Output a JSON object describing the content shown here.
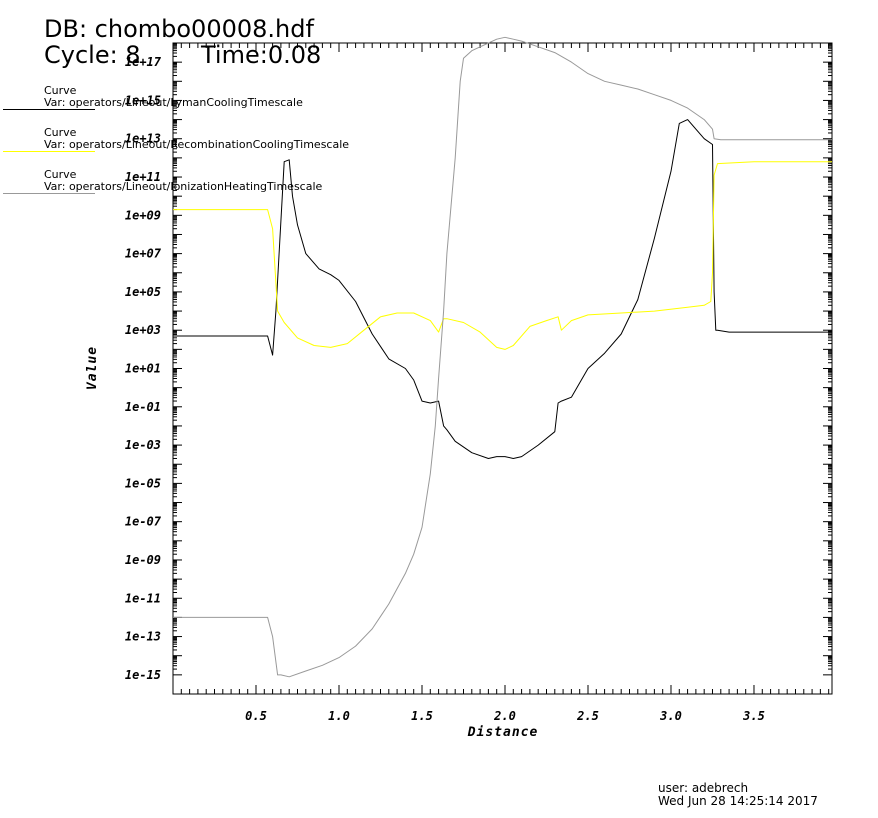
{
  "header": {
    "db": "DB: chombo00008.hdf",
    "cycle": "Cycle: 8",
    "time": "Time:0.08"
  },
  "legend": [
    {
      "title": "Curve",
      "var": "Var: operators/Lineout/LymanCoolingTimescale",
      "color": "#000000"
    },
    {
      "title": "Curve",
      "var": "Var: operators/Lineout/RecombinationCoolingTimescale",
      "color": "#ffff00"
    },
    {
      "title": "Curve",
      "var": "Var: operators/Lineout/IonizationHeatingTimescale",
      "color": "#999999"
    }
  ],
  "footer": {
    "user": "user: adebrech",
    "date": "Wed Jun 28 14:25:14 2017"
  },
  "chart_data": {
    "type": "line",
    "title": "",
    "xlabel": "Distance",
    "ylabel": "Value",
    "yscale": "log",
    "xlim": [
      0,
      3.97
    ],
    "ylim_log10": [
      -16,
      18
    ],
    "x_ticks": [
      0.5,
      1.0,
      1.5,
      2.0,
      2.5,
      3.0,
      3.5
    ],
    "x_tick_labels": [
      "0.5",
      "1.0",
      "1.5",
      "2.0",
      "2.5",
      "3.0",
      "3.5"
    ],
    "y_ticks_log10": [
      -15,
      -13,
      -11,
      -9,
      -7,
      -5,
      -3,
      -1,
      1,
      3,
      5,
      7,
      9,
      11,
      13,
      15,
      17
    ],
    "y_tick_labels": [
      "1e-15",
      "1e-13",
      "1e-11",
      "1e-09",
      "1e-07",
      "1e-05",
      "1e-03",
      "1e-01",
      "1e+01",
      "1e+03",
      "1e+05",
      "1e+07",
      "1e+09",
      "1e+11",
      "1e+13",
      "1e+15",
      "1e+17"
    ],
    "series_note": "y values given as log10(Value)",
    "series": [
      {
        "name": "Var: operators/Lineout/LymanCoolingTimescale",
        "color": "#000000",
        "x": [
          0,
          0.57,
          0.6,
          0.62,
          0.67,
          0.7,
          0.72,
          0.75,
          0.8,
          0.88,
          0.95,
          1.0,
          1.1,
          1.2,
          1.3,
          1.4,
          1.45,
          1.5,
          1.55,
          1.6,
          1.63,
          1.65,
          1.7,
          1.8,
          1.9,
          1.95,
          2.0,
          2.05,
          2.1,
          2.2,
          2.3,
          2.32,
          2.34,
          2.4,
          2.5,
          2.6,
          2.7,
          2.8,
          2.9,
          3.0,
          3.05,
          3.1,
          3.2,
          3.25,
          3.26,
          3.27,
          3.28,
          3.35,
          3.5,
          3.7,
          3.97
        ],
        "y": [
          2.7,
          2.7,
          1.7,
          4.0,
          11.8,
          11.9,
          10.0,
          8.5,
          7.0,
          6.2,
          5.9,
          5.6,
          4.5,
          2.8,
          1.5,
          1.0,
          0.4,
          -0.7,
          -0.8,
          -0.7,
          -2.0,
          -2.2,
          -2.8,
          -3.4,
          -3.7,
          -3.6,
          -3.6,
          -3.7,
          -3.6,
          -3.0,
          -2.3,
          -0.8,
          -0.7,
          -0.5,
          1.0,
          1.8,
          2.8,
          4.6,
          7.8,
          11.3,
          13.8,
          14.0,
          13.0,
          12.7,
          5.0,
          3.0,
          3.0,
          2.9,
          2.9,
          2.9,
          2.9
        ]
      },
      {
        "name": "Var: operators/Lineout/RecombinationCoolingTimescale",
        "color": "#ffff00",
        "x": [
          0,
          0.57,
          0.6,
          0.63,
          0.67,
          0.75,
          0.85,
          0.95,
          1.05,
          1.15,
          1.25,
          1.35,
          1.45,
          1.55,
          1.6,
          1.63,
          1.65,
          1.75,
          1.85,
          1.95,
          2.0,
          2.05,
          2.15,
          2.25,
          2.32,
          2.34,
          2.4,
          2.5,
          2.7,
          2.9,
          3.1,
          3.2,
          3.24,
          3.25,
          3.26,
          3.28,
          3.5,
          3.97
        ],
        "y": [
          9.3,
          9.3,
          8.3,
          4.0,
          3.4,
          2.6,
          2.2,
          2.1,
          2.3,
          3.0,
          3.7,
          3.9,
          3.9,
          3.5,
          2.9,
          3.6,
          3.6,
          3.4,
          2.9,
          2.1,
          2.0,
          2.2,
          3.2,
          3.5,
          3.7,
          3.0,
          3.5,
          3.8,
          3.9,
          4.0,
          4.2,
          4.3,
          4.5,
          6.0,
          11.1,
          11.7,
          11.8,
          11.8
        ]
      },
      {
        "name": "Var: operators/Lineout/IonizationHeatingTimescale",
        "color": "#999999",
        "x": [
          0,
          0.57,
          0.6,
          0.63,
          0.65,
          0.7,
          0.8,
          0.9,
          1.0,
          1.1,
          1.2,
          1.3,
          1.4,
          1.45,
          1.5,
          1.55,
          1.58,
          1.6,
          1.63,
          1.65,
          1.7,
          1.73,
          1.75,
          1.8,
          1.9,
          1.95,
          2.0,
          2.05,
          2.1,
          2.2,
          2.3,
          2.4,
          2.5,
          2.6,
          2.7,
          2.8,
          2.9,
          3.0,
          3.1,
          3.2,
          3.24,
          3.25,
          3.26,
          3.3,
          3.5,
          3.97
        ],
        "y": [
          -12.0,
          -12.0,
          -13.0,
          -15.0,
          -15.0,
          -15.1,
          -14.8,
          -14.5,
          -14.1,
          -13.5,
          -12.6,
          -11.3,
          -9.7,
          -8.7,
          -7.3,
          -4.5,
          -2.0,
          0.5,
          4.0,
          7.0,
          12.0,
          16.0,
          17.2,
          17.6,
          18.0,
          18.2,
          18.3,
          18.2,
          18.1,
          17.8,
          17.5,
          17.0,
          16.4,
          16.0,
          15.8,
          15.6,
          15.3,
          15.0,
          14.6,
          14.0,
          13.6,
          13.5,
          13.0,
          12.95,
          12.95,
          12.95
        ]
      }
    ]
  }
}
